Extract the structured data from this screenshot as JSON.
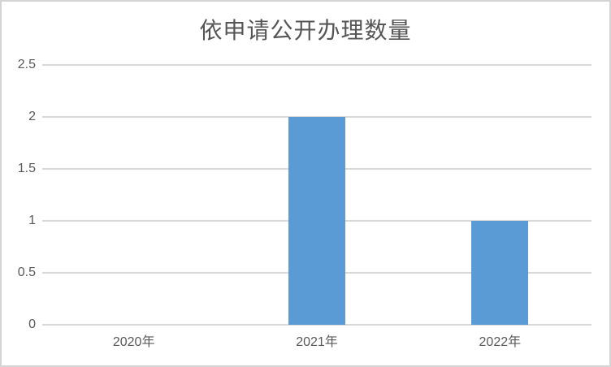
{
  "chart_data": {
    "type": "bar",
    "title": "依申请公开办理数量",
    "categories": [
      "2020年",
      "2021年",
      "2022年"
    ],
    "values": [
      0,
      2,
      1
    ],
    "xlabel": "",
    "ylabel": "",
    "ylim": [
      0,
      2.5
    ],
    "yticks": [
      0,
      0.5,
      1,
      1.5,
      2,
      2.5
    ],
    "grid": true,
    "legend_position": "none",
    "colors": {
      "bar": "#5B9BD5",
      "gridline": "#D9D9D9",
      "tick_text": "#595959",
      "title_text": "#555555",
      "frame_border": "#D4D4D4"
    }
  }
}
